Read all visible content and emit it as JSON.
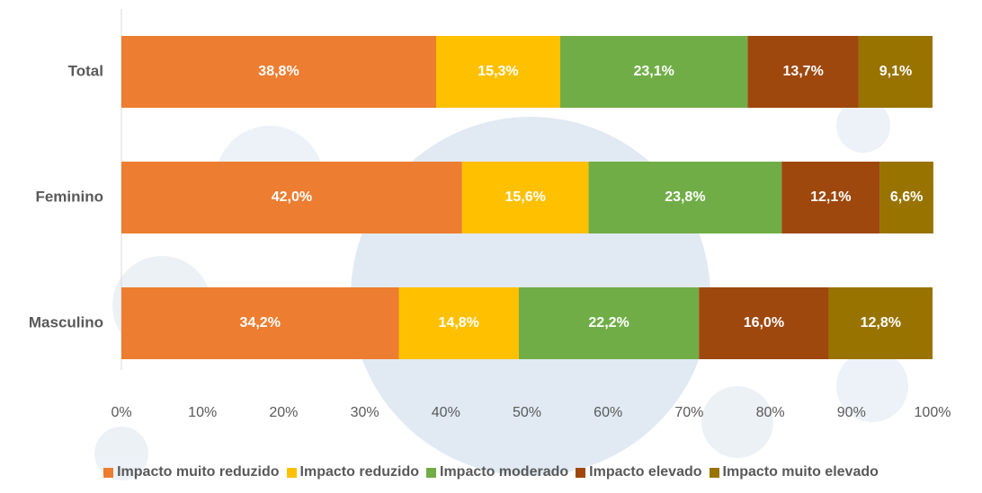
{
  "chart_data": {
    "type": "stacked-bar-horizontal",
    "categories": [
      "Total",
      "Feminino",
      "Masculino"
    ],
    "series": [
      {
        "name": "Impacto muito reduzido",
        "color": "#ed7d31",
        "values": [
          38.8,
          42.0,
          34.2
        ],
        "value_labels": [
          "38,8%",
          "42,0%",
          "34,2%"
        ]
      },
      {
        "name": "Impacto reduzido",
        "color": "#ffc000",
        "values": [
          15.3,
          15.6,
          14.8
        ],
        "value_labels": [
          "15,3%",
          "15,6%",
          "14,8%"
        ]
      },
      {
        "name": "Impacto moderado",
        "color": "#70ad47",
        "values": [
          23.1,
          23.8,
          22.2
        ],
        "value_labels": [
          "23,1%",
          "23,8%",
          "22,2%"
        ]
      },
      {
        "name": "Impacto elevado",
        "color": "#9e480e",
        "values": [
          13.7,
          12.1,
          16.0
        ],
        "value_labels": [
          "13,7%",
          "12,1%",
          "16,0%"
        ]
      },
      {
        "name": "Impacto muito elevado",
        "color": "#997300",
        "values": [
          9.1,
          6.6,
          12.8
        ],
        "value_labels": [
          "9,1%",
          "6,6%",
          "12,8%"
        ]
      }
    ],
    "xlim": [
      0,
      100
    ],
    "xticks": [
      {
        "value": 0,
        "label": "0%"
      },
      {
        "value": 10,
        "label": "10%"
      },
      {
        "value": 20,
        "label": "20%"
      },
      {
        "value": 30,
        "label": "30%"
      },
      {
        "value": 40,
        "label": "40%"
      },
      {
        "value": 50,
        "label": "50%"
      },
      {
        "value": 60,
        "label": "60%"
      },
      {
        "value": 70,
        "label": "70%"
      },
      {
        "value": 80,
        "label": "80%"
      },
      {
        "value": 90,
        "label": "90%"
      },
      {
        "value": 100,
        "label": "100%"
      }
    ],
    "grid": false,
    "legend": "bottom"
  }
}
